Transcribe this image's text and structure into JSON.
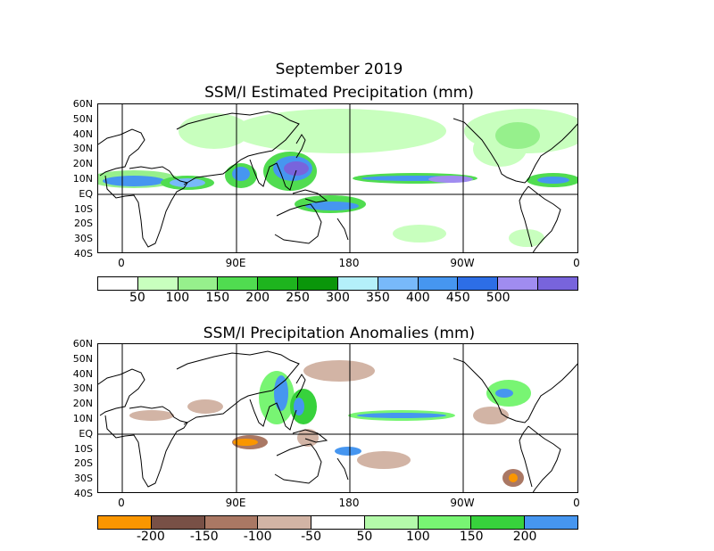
{
  "header": {
    "title": "September 2019"
  },
  "panel1": {
    "title": "SSM/I Estimated Precipitation (mm)",
    "lat_labels": [
      "60N",
      "50N",
      "40N",
      "30N",
      "20N",
      "10N",
      "EQ",
      "10S",
      "20S",
      "30S",
      "40S"
    ],
    "lon_labels": [
      "0",
      "90E",
      "180",
      "90W",
      "0"
    ],
    "legend": {
      "colors": [
        "#ffffff",
        "#c8ffbe",
        "#96f08c",
        "#50dc50",
        "#1eb41e",
        "#0a960a",
        "#b4f0fa",
        "#78b9fa",
        "#4696f0",
        "#2d6ee6",
        "#a08cf0",
        "#7864dc"
      ],
      "labels": [
        "50",
        "100",
        "150",
        "200",
        "250",
        "300",
        "350",
        "400",
        "450",
        "500"
      ]
    }
  },
  "panel2": {
    "title": "SSM/I Precipitation Anomalies (mm)",
    "lat_labels": [
      "60N",
      "50N",
      "40N",
      "30N",
      "20N",
      "10N",
      "EQ",
      "10S",
      "20S",
      "30S",
      "40S"
    ],
    "lon_labels": [
      "0",
      "90E",
      "180",
      "90W",
      "0"
    ],
    "legend": {
      "colors": [
        "#fa9600",
        "#785046",
        "#aa7864",
        "#d2b4a5",
        "#ffffff",
        "#b4faaa",
        "#78f573",
        "#37d23c",
        "#4696f0"
      ],
      "labels": [
        "-200",
        "-150",
        "-100",
        "-50",
        "50",
        "100",
        "150",
        "200"
      ]
    }
  }
}
